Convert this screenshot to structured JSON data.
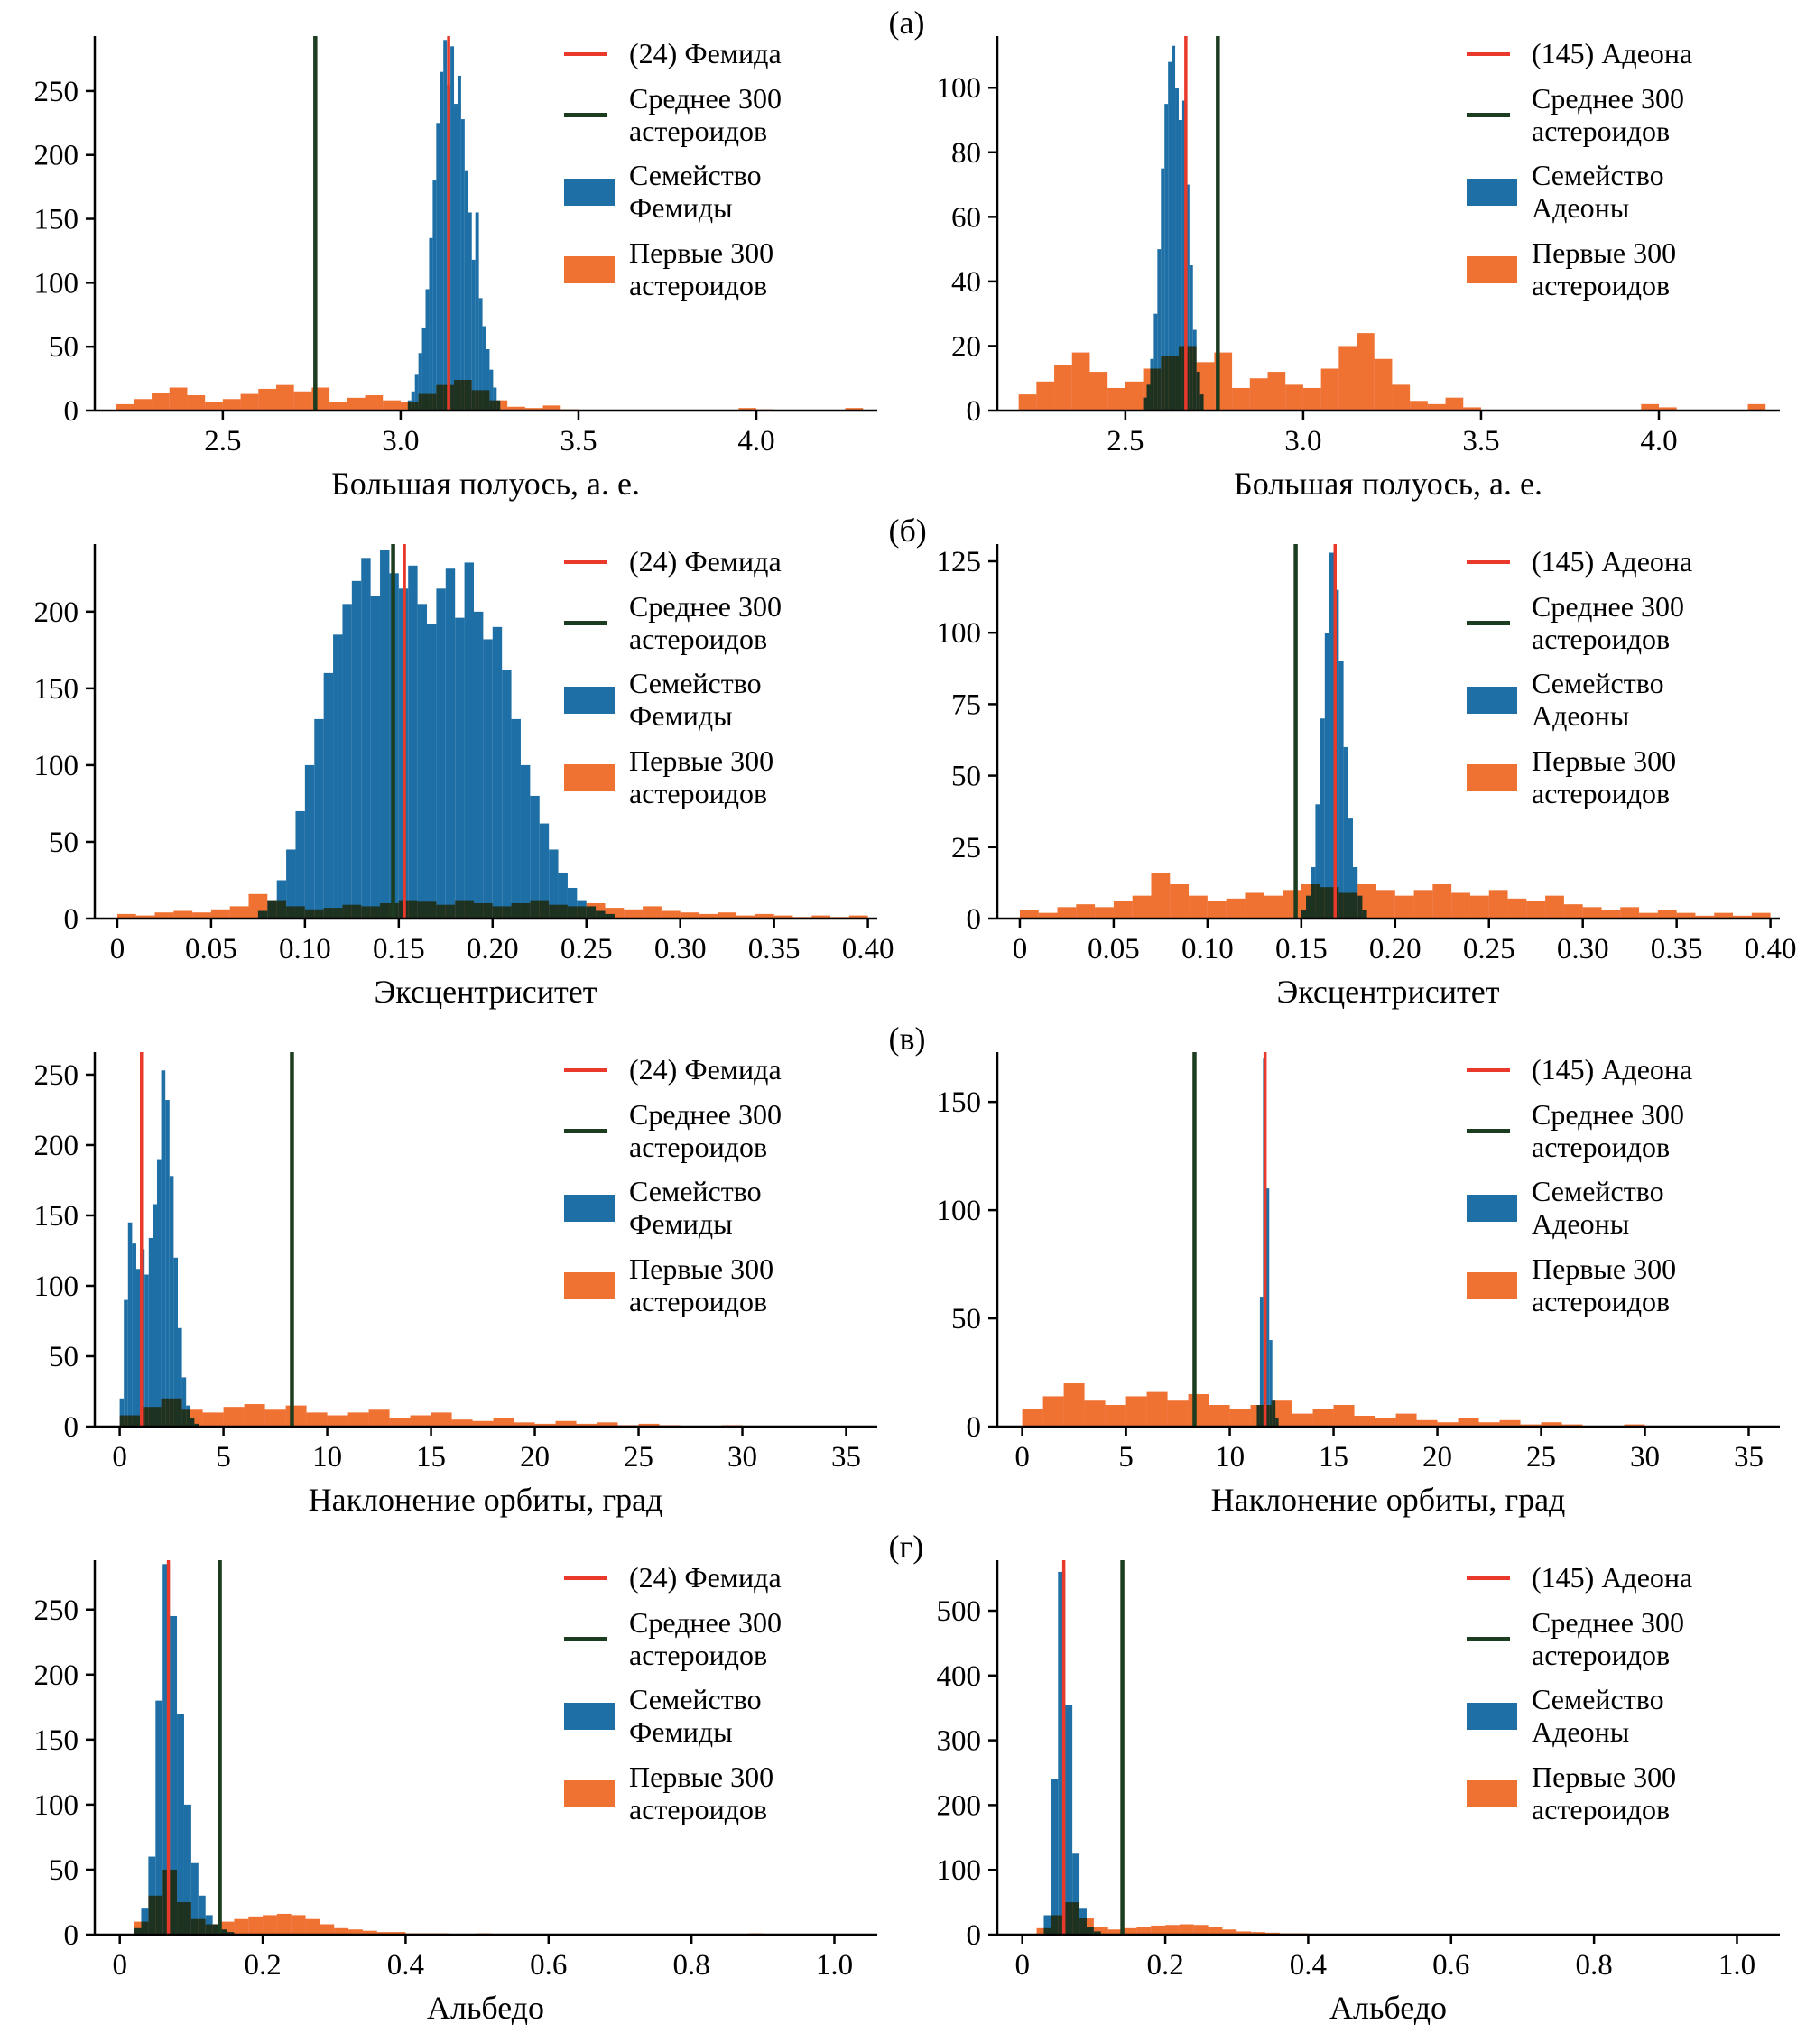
{
  "figure": {
    "background": "#ffffff",
    "colors": {
      "family_fill": "#1e6fa5",
      "first300_fill": "#ef7233",
      "asteroid_line": "#e8392b",
      "mean_line": "#1d3d20",
      "axis": "#000000",
      "text": "#000000"
    }
  },
  "chart_data": {
    "type": "bar",
    "subtype": "histogram-grid",
    "grid": false,
    "legend_position": "upper right",
    "rows": [
      {
        "label": "(а)",
        "panels": [
          {
            "xlabel": "Большая полуось, а. е.",
            "xlim": [
              2.14,
              4.34
            ],
            "ylim": [
              0,
              293
            ],
            "xticks": [
              2.5,
              3.0,
              3.5,
              4.0
            ],
            "xtick_labels": [
              "2.5",
              "3.0",
              "3.5",
              "4.0"
            ],
            "yticks": [
              0,
              50,
              100,
              150,
              200,
              250
            ],
            "red_line": {
              "label": "(24) Фемида",
              "x": 3.135
            },
            "green_line": {
              "label": "Среднее 300\nастероидов",
              "x": 2.76
            },
            "family": {
              "label": "Семейство\nФемиды",
              "x0": 3.02,
              "bin_width": 0.01,
              "counts": [
                8,
                15,
                28,
                45,
                65,
                95,
                135,
                180,
                225,
                265,
                290,
                255,
                285,
                240,
                262,
                228,
                188,
                155,
                118,
                155,
                88,
                66,
                48,
                32,
                18,
                8
              ]
            },
            "first300": {
              "label": "Первые 300\nастероидов",
              "x0": 2.2,
              "bin_width": 0.05,
              "counts": [
                5,
                9,
                14,
                18,
                12,
                7,
                9,
                13,
                17,
                20,
                15,
                18,
                7,
                10,
                12,
                8,
                7,
                13,
                20,
                24,
                16,
                8,
                3,
                2,
                4,
                1,
                0,
                0,
                0,
                0,
                0,
                0,
                0,
                0,
                0,
                2,
                1,
                0,
                0,
                0,
                0,
                2
              ]
            }
          },
          {
            "xlabel": "Большая полуось, а. е.",
            "xlim": [
              2.14,
              4.34
            ],
            "ylim": [
              0,
              116
            ],
            "xticks": [
              2.5,
              3.0,
              3.5,
              4.0
            ],
            "xtick_labels": [
              "2.5",
              "3.0",
              "3.5",
              "4.0"
            ],
            "yticks": [
              0,
              20,
              40,
              60,
              80,
              100
            ],
            "red_line": {
              "label": "(145) Адеона",
              "x": 2.67
            },
            "green_line": {
              "label": "Среднее 300\nастероидов",
              "x": 2.76
            },
            "family": {
              "label": "Семейство\nАдеоны",
              "x0": 2.55,
              "bin_width": 0.01,
              "counts": [
                4,
                8,
                16,
                30,
                50,
                75,
                95,
                108,
                113,
                100,
                90,
                96,
                70,
                45,
                25,
                12,
                5
              ]
            },
            "first300": {
              "label": "Первые 300\nастероидов",
              "x0": 2.2,
              "bin_width": 0.05,
              "counts": [
                5,
                9,
                14,
                18,
                12,
                7,
                9,
                13,
                17,
                20,
                15,
                18,
                7,
                10,
                12,
                8,
                7,
                13,
                20,
                24,
                16,
                8,
                3,
                2,
                4,
                1,
                0,
                0,
                0,
                0,
                0,
                0,
                0,
                0,
                0,
                2,
                1,
                0,
                0,
                0,
                0,
                2
              ]
            }
          }
        ]
      },
      {
        "label": "(б)",
        "panels": [
          {
            "xlabel": "Эксцентриситет",
            "xlim": [
              -0.012,
              0.405
            ],
            "ylim": [
              0,
              244
            ],
            "xticks": [
              0,
              0.05,
              0.1,
              0.15,
              0.2,
              0.25,
              0.3,
              0.35,
              0.4
            ],
            "xtick_labels": [
              "0",
              "0.05",
              "0.10",
              "0.15",
              "0.20",
              "0.25",
              "0.30",
              "0.35",
              "0.40"
            ],
            "yticks": [
              0,
              50,
              100,
              150,
              200
            ],
            "red_line": {
              "label": "(24) Фемида",
              "x": 0.153
            },
            "green_line": {
              "label": "Среднее 300\nастероидов",
              "x": 0.147
            },
            "family": {
              "label": "Семейство\nФемиды",
              "x0": 0.075,
              "bin_width": 0.005,
              "counts": [
                5,
                12,
                25,
                45,
                70,
                100,
                130,
                160,
                185,
                205,
                220,
                235,
                210,
                240,
                225,
                215,
                230,
                205,
                192,
                215,
                228,
                196,
                232,
                200,
                182,
                190,
                162,
                130,
                100,
                80,
                62,
                45,
                30,
                20,
                12,
                8,
                5,
                3
              ]
            },
            "first300": {
              "label": "Первые 300\nастероидов",
              "x0": 0.0,
              "bin_width": 0.01,
              "counts": [
                3,
                2,
                4,
                5,
                4,
                6,
                8,
                16,
                12,
                8,
                6,
                7,
                9,
                8,
                10,
                12,
                11,
                9,
                12,
                10,
                8,
                10,
                12,
                9,
                8,
                10,
                7,
                6,
                8,
                5,
                4,
                3,
                4,
                2,
                3,
                2,
                1,
                2,
                1,
                2
              ]
            }
          },
          {
            "xlabel": "Эксцентриситет",
            "xlim": [
              -0.012,
              0.405
            ],
            "ylim": [
              0,
              131
            ],
            "xticks": [
              0,
              0.05,
              0.1,
              0.15,
              0.2,
              0.25,
              0.3,
              0.35,
              0.4
            ],
            "xtick_labels": [
              "0",
              "0.05",
              "0.10",
              "0.15",
              "0.20",
              "0.25",
              "0.30",
              "0.35",
              "0.40"
            ],
            "yticks": [
              0,
              25,
              50,
              75,
              100,
              125
            ],
            "red_line": {
              "label": "(145) Адеона",
              "x": 0.168
            },
            "green_line": {
              "label": "Среднее 300\nастероидов",
              "x": 0.147
            },
            "family": {
              "label": "Семейство\nАдеоны",
              "x0": 0.15,
              "bin_width": 0.0025,
              "counts": [
                3,
                8,
                18,
                40,
                70,
                100,
                128,
                115,
                90,
                60,
                35,
                18,
                8,
                3
              ]
            },
            "first300": {
              "label": "Первые 300\nастероидов",
              "x0": 0.0,
              "bin_width": 0.01,
              "counts": [
                3,
                2,
                4,
                5,
                4,
                6,
                8,
                16,
                12,
                8,
                6,
                7,
                9,
                8,
                10,
                12,
                11,
                9,
                12,
                10,
                8,
                10,
                12,
                9,
                8,
                10,
                7,
                6,
                8,
                5,
                4,
                3,
                4,
                2,
                3,
                2,
                1,
                2,
                1,
                2
              ]
            }
          }
        ]
      },
      {
        "label": "(в)",
        "panels": [
          {
            "xlabel": "Наклонение орбиты, град",
            "xlim": [
              -1.2,
              36.5
            ],
            "ylim": [
              0,
              266
            ],
            "xticks": [
              0,
              5,
              10,
              15,
              20,
              25,
              30,
              35
            ],
            "xtick_labels": [
              "0",
              "5",
              "10",
              "15",
              "20",
              "25",
              "30",
              "35"
            ],
            "yticks": [
              0,
              50,
              100,
              150,
              200,
              250
            ],
            "red_line": {
              "label": "(24) Фемида",
              "x": 1.05
            },
            "green_line": {
              "label": "Среднее 300\nастероидов",
              "x": 8.3
            },
            "family": {
              "label": "Семейство\nФемиды",
              "x0": 0,
              "bin_width": 0.2,
              "counts": [
                20,
                90,
                145,
                130,
                112,
                126,
                108,
                134,
                158,
                190,
                253,
                232,
                178,
                120,
                70,
                35,
                15,
                6,
                2
              ]
            },
            "first300": {
              "label": "Первые 300\nастероидов",
              "x0": 0,
              "bin_width": 1,
              "counts": [
                8,
                14,
                20,
                12,
                10,
                14,
                16,
                12,
                15,
                10,
                8,
                10,
                12,
                6,
                8,
                10,
                5,
                4,
                6,
                3,
                2,
                4,
                2,
                3,
                1,
                2,
                1,
                0,
                0,
                1
              ]
            }
          },
          {
            "xlabel": "Наклонение орбиты, град",
            "xlim": [
              -1.2,
              36.5
            ],
            "ylim": [
              0,
              173
            ],
            "xticks": [
              0,
              5,
              10,
              15,
              20,
              25,
              30,
              35
            ],
            "xtick_labels": [
              "0",
              "5",
              "10",
              "15",
              "20",
              "25",
              "30",
              "35"
            ],
            "yticks": [
              0,
              50,
              100,
              150
            ],
            "red_line": {
              "label": "(145) Адеона",
              "x": 11.7
            },
            "green_line": {
              "label": "Среднее 300\nастероидов",
              "x": 8.3
            },
            "family": {
              "label": "Семейство\nАдеоны",
              "x0": 11.3,
              "bin_width": 0.15,
              "counts": [
                10,
                60,
                170,
                110,
                40,
                12,
                4
              ]
            },
            "first300": {
              "label": "Первые 300\nастероидов",
              "x0": 0,
              "bin_width": 1,
              "counts": [
                8,
                14,
                20,
                12,
                10,
                14,
                16,
                12,
                15,
                10,
                8,
                10,
                12,
                6,
                8,
                10,
                5,
                4,
                6,
                3,
                2,
                4,
                2,
                3,
                1,
                2,
                1,
                0,
                0,
                1
              ]
            }
          }
        ]
      },
      {
        "label": "(г)",
        "panels": [
          {
            "xlabel": "Альбедо",
            "xlim": [
              -0.035,
              1.06
            ],
            "ylim": [
              0,
              288
            ],
            "xticks": [
              0,
              0.2,
              0.4,
              0.6,
              0.8,
              1.0
            ],
            "xtick_labels": [
              "0",
              "0.2",
              "0.4",
              "0.6",
              "0.8",
              "1.0"
            ],
            "yticks": [
              0,
              50,
              100,
              150,
              200,
              250
            ],
            "red_line": {
              "label": "(24) Фемида",
              "x": 0.068
            },
            "green_line": {
              "label": "Среднее 300\nастероидов",
              "x": 0.14
            },
            "family": {
              "label": "Семейство\nФемиды",
              "x0": 0.02,
              "bin_width": 0.01,
              "counts": [
                5,
                20,
                60,
                180,
                285,
                245,
                170,
                100,
                55,
                30,
                15,
                8,
                4,
                2
              ]
            },
            "first300": {
              "label": "Первые 300\nастероидов",
              "x0": 0.02,
              "bin_width": 0.02,
              "counts": [
                10,
                30,
                50,
                25,
                12,
                8,
                10,
                12,
                14,
                15,
                16,
                15,
                12,
                8,
                5,
                4,
                3,
                2,
                2,
                1,
                1,
                1,
                0,
                0,
                1,
                0,
                0,
                0,
                0,
                0,
                0,
                0,
                0,
                0,
                0,
                0,
                0,
                0,
                0,
                0,
                0,
                0,
                0,
                1
              ]
            }
          },
          {
            "xlabel": "Альбедо",
            "xlim": [
              -0.035,
              1.06
            ],
            "ylim": [
              0,
              578
            ],
            "xticks": [
              0,
              0.2,
              0.4,
              0.6,
              0.8,
              1.0
            ],
            "xtick_labels": [
              "0",
              "0.2",
              "0.4",
              "0.6",
              "0.8",
              "1.0"
            ],
            "yticks": [
              0,
              100,
              200,
              300,
              400,
              500
            ],
            "red_line": {
              "label": "(145) Адеона",
              "x": 0.058
            },
            "green_line": {
              "label": "Среднее 300\nастероидов",
              "x": 0.14
            },
            "family": {
              "label": "Семейство\nАдеоны",
              "x0": 0.03,
              "bin_width": 0.01,
              "counts": [
                30,
                240,
                560,
                355,
                125,
                40,
                12,
                5
              ]
            },
            "first300": {
              "label": "Первые 300\nастероидов",
              "x0": 0.02,
              "bin_width": 0.02,
              "counts": [
                10,
                30,
                50,
                25,
                12,
                8,
                10,
                12,
                14,
                15,
                16,
                15,
                12,
                8,
                5,
                4,
                3,
                2,
                2,
                1,
                1,
                1,
                0,
                0,
                1,
                0,
                0,
                0,
                0,
                0,
                0,
                0,
                0,
                0,
                0,
                0,
                0,
                0,
                0,
                0,
                0,
                0,
                0,
                1
              ]
            }
          }
        ]
      }
    ]
  }
}
